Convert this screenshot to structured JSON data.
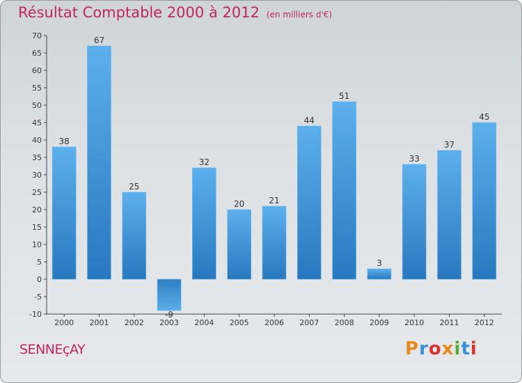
{
  "title": "Résultat Comptable 2000 à 2012",
  "subtitle": "(en milliers d'€)",
  "city": "SENNEçAY",
  "brand": {
    "letters": [
      "P",
      "r",
      "o",
      "x",
      "i",
      "t",
      "i"
    ],
    "colors": [
      "#e8891b",
      "#3a8fd8",
      "#d8332b",
      "#e8891b",
      "#5aa832",
      "#3a8fd8",
      "#d8332b"
    ]
  },
  "chart_data": {
    "type": "bar",
    "title": "Résultat Comptable 2000 à 2012",
    "xlabel": "",
    "ylabel": "",
    "categories": [
      "2000",
      "2001",
      "2002",
      "2003",
      "2004",
      "2005",
      "2006",
      "2007",
      "2008",
      "2009",
      "2010",
      "2011",
      "2012"
    ],
    "values": [
      38,
      67,
      25,
      -9,
      32,
      20,
      21,
      44,
      51,
      3,
      33,
      37,
      45
    ],
    "data_labels": [
      "38",
      "67",
      "25",
      "-9",
      "32",
      "20",
      "21",
      "44",
      "51",
      "3",
      "33",
      "37",
      "45"
    ],
    "ylim": [
      -10,
      70
    ],
    "yticks": [
      -10,
      -5,
      0,
      5,
      10,
      15,
      20,
      25,
      30,
      35,
      40,
      45,
      50,
      55,
      60,
      65,
      70
    ],
    "grid": false,
    "colors": {
      "bar": "#4a9fe0",
      "bar_dark": "#2a78c0",
      "axis": "#444444"
    }
  }
}
